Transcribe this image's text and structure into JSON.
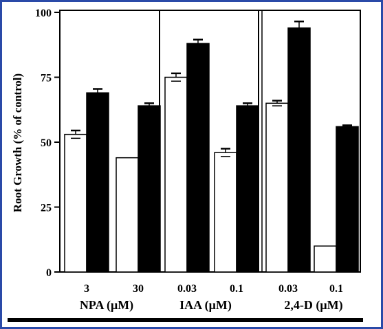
{
  "chart_data": {
    "type": "bar",
    "ylabel": "Root Growth (% of control)",
    "ylim": [
      0,
      100
    ],
    "yticks": [
      "0",
      "25",
      "50",
      "75",
      "100"
    ],
    "categories": [
      "3",
      "30",
      "0.03",
      "0.1",
      "0.03",
      "0.1"
    ],
    "groups": [
      {
        "label": "NPA (μM)",
        "categories": [
          "3",
          "30"
        ]
      },
      {
        "label": "IAA (μM)",
        "categories": [
          "0.03",
          "0.1"
        ]
      },
      {
        "label": "2,4-D (μM)",
        "categories": [
          "0.03",
          "0.1"
        ]
      }
    ],
    "series": [
      {
        "fill": "white",
        "values": [
          53,
          44,
          75,
          46,
          65,
          10
        ],
        "errors": [
          1.5,
          0,
          1.5,
          1.5,
          1.0,
          0
        ]
      },
      {
        "fill": "black",
        "values": [
          69,
          64,
          88,
          64,
          94,
          56
        ],
        "errors": [
          1.5,
          1.0,
          1.5,
          1.0,
          2.5,
          0.5
        ]
      }
    ],
    "legend": "none",
    "grid": false
  },
  "colors": {
    "frame_border": "#2a4aa8",
    "bar_open": "#ffffff",
    "bar_filled": "#000000"
  }
}
